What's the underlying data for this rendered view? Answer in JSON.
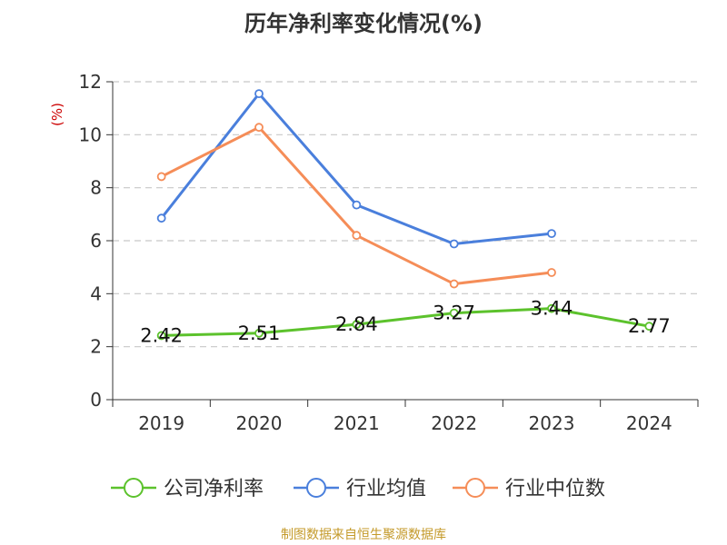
{
  "chart_data": {
    "type": "line",
    "title": "历年净利率变化情况(%)",
    "ylabel": "(%)",
    "xlabel": "",
    "categories": [
      "2019",
      "2020",
      "2021",
      "2022",
      "2023",
      "2024"
    ],
    "ylim": [
      0,
      12
    ],
    "yticks": [
      0,
      2,
      4,
      6,
      8,
      10,
      12
    ],
    "grid": true,
    "legend_position": "bottom",
    "series": [
      {
        "name": "公司净利率",
        "color": "#5cc22c",
        "values": [
          2.42,
          2.51,
          2.84,
          3.27,
          3.44,
          2.77
        ],
        "labels": [
          "2.42",
          "2.51",
          "2.84",
          "3.27",
          "3.44",
          "2.77"
        ],
        "show_labels": true
      },
      {
        "name": "行业均值",
        "color": "#4a7fdc",
        "values": [
          6.85,
          11.55,
          7.35,
          5.88,
          6.27,
          null
        ],
        "show_labels": false
      },
      {
        "name": "行业中位数",
        "color": "#f58d58",
        "values": [
          8.42,
          10.28,
          6.2,
          4.37,
          4.8,
          null
        ],
        "show_labels": false
      }
    ]
  },
  "footer": "制图数据来自恒生聚源数据库"
}
